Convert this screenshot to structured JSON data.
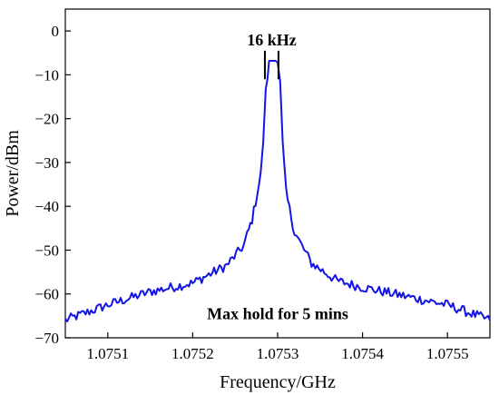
{
  "chart_data": {
    "type": "line",
    "title": "",
    "xlabel": "Frequency/GHz",
    "ylabel": "Power/dBm",
    "xlim": [
      1.07505,
      1.07555
    ],
    "ylim": [
      -70,
      5
    ],
    "x_ticks": [
      1.0751,
      1.0752,
      1.0753,
      1.0754,
      1.0755
    ],
    "x_tick_labels": [
      "1.0751",
      "1.0752",
      "1.0753",
      "1.0754",
      "1.0755"
    ],
    "y_ticks": [
      0,
      -10,
      -20,
      -30,
      -40,
      -50,
      -60,
      -70
    ],
    "y_tick_labels": [
      "0",
      "−10",
      "−20",
      "−30",
      "−40",
      "−50",
      "−60",
      "−70"
    ],
    "grid": false,
    "legend": "none",
    "series": [
      {
        "x": [
          1.07505,
          1.0751,
          1.07515,
          1.0752,
          1.07524,
          1.07526,
          1.07527,
          1.07528,
          1.075283,
          1.075286,
          1.07529,
          1.075295,
          1.0753,
          1.075303,
          1.075306,
          1.07531,
          1.07532,
          1.07534,
          1.07537,
          1.0754,
          1.07545,
          1.0755,
          1.07555
        ],
        "y": [
          -66,
          -62.5,
          -59.5,
          -57.5,
          -53.5,
          -49,
          -43,
          -33,
          -25,
          -14,
          -6.8,
          -6.8,
          -6.8,
          -12,
          -26,
          -37,
          -46,
          -53,
          -57,
          -58.5,
          -60.5,
          -62.5,
          -66
        ]
      }
    ],
    "annotations": [
      {
        "text": "16 kHz",
        "x": 1.075293,
        "y": -2
      },
      {
        "text": "Max hold for 5 mins",
        "x": 1.0753,
        "y": -64.5
      }
    ],
    "bandwidth_markers_x": [
      1.075285,
      1.075301
    ],
    "colors": {
      "line": "#1414e6",
      "axis": "#000000",
      "marker": "#000000"
    }
  }
}
